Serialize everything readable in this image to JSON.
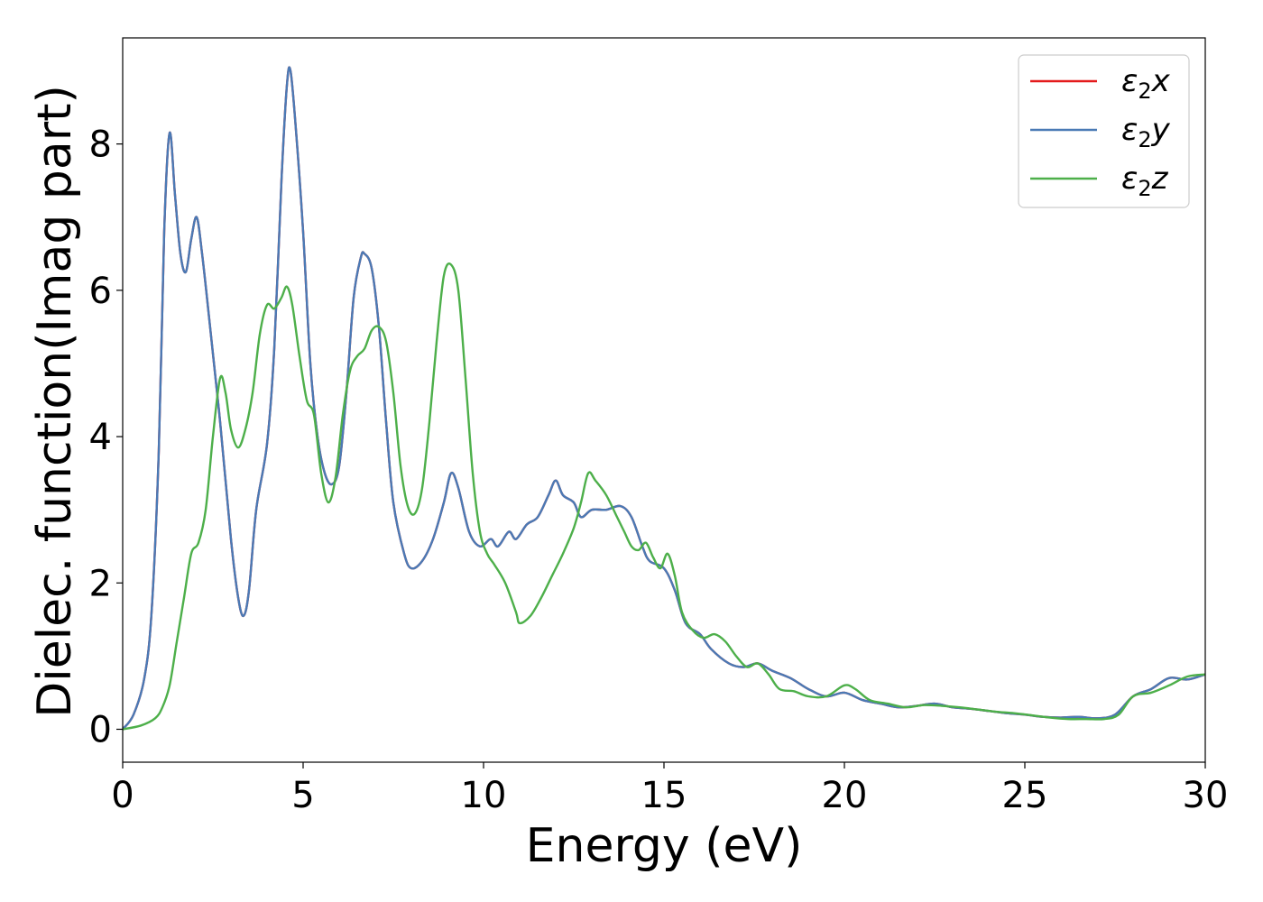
{
  "chart_data": {
    "type": "line",
    "title": "",
    "xlabel": "Energy (eV)",
    "ylabel": "Dielec. function(Imag part)",
    "xlim": [
      0,
      30
    ],
    "ylim": [
      -0.45,
      9.45
    ],
    "xticks": [
      0,
      5,
      10,
      15,
      20,
      25,
      30
    ],
    "yticks": [
      0,
      2,
      4,
      6,
      8
    ],
    "grid": false,
    "legend_position": "top-right",
    "series": [
      {
        "name": "ε2x",
        "name_base": "ε",
        "name_sub": "2",
        "name_var": "x",
        "color": "#e41a1c",
        "points": [
          [
            0,
            0
          ],
          [
            0.3,
            0.2
          ],
          [
            0.6,
            0.7
          ],
          [
            0.8,
            1.6
          ],
          [
            1.0,
            3.8
          ],
          [
            1.15,
            6.8
          ],
          [
            1.3,
            8.15
          ],
          [
            1.45,
            7.3
          ],
          [
            1.6,
            6.5
          ],
          [
            1.75,
            6.25
          ],
          [
            1.9,
            6.7
          ],
          [
            2.05,
            7.0
          ],
          [
            2.2,
            6.5
          ],
          [
            2.4,
            5.6
          ],
          [
            2.7,
            4.2
          ],
          [
            3.0,
            2.6
          ],
          [
            3.2,
            1.8
          ],
          [
            3.35,
            1.55
          ],
          [
            3.5,
            1.9
          ],
          [
            3.7,
            3.0
          ],
          [
            4.0,
            3.9
          ],
          [
            4.2,
            5.2
          ],
          [
            4.4,
            7.5
          ],
          [
            4.55,
            8.8
          ],
          [
            4.65,
            9.0
          ],
          [
            4.8,
            8.2
          ],
          [
            5.0,
            6.8
          ],
          [
            5.2,
            5.0
          ],
          [
            5.4,
            4.0
          ],
          [
            5.6,
            3.5
          ],
          [
            5.8,
            3.35
          ],
          [
            6.0,
            3.6
          ],
          [
            6.2,
            4.6
          ],
          [
            6.4,
            5.9
          ],
          [
            6.6,
            6.45
          ],
          [
            6.7,
            6.5
          ],
          [
            6.9,
            6.3
          ],
          [
            7.1,
            5.5
          ],
          [
            7.3,
            4.2
          ],
          [
            7.5,
            3.1
          ],
          [
            7.8,
            2.4
          ],
          [
            8.0,
            2.2
          ],
          [
            8.3,
            2.3
          ],
          [
            8.6,
            2.6
          ],
          [
            8.9,
            3.1
          ],
          [
            9.1,
            3.5
          ],
          [
            9.3,
            3.3
          ],
          [
            9.6,
            2.7
          ],
          [
            9.9,
            2.5
          ],
          [
            10.2,
            2.6
          ],
          [
            10.4,
            2.5
          ],
          [
            10.7,
            2.7
          ],
          [
            10.9,
            2.6
          ],
          [
            11.2,
            2.8
          ],
          [
            11.5,
            2.9
          ],
          [
            11.8,
            3.2
          ],
          [
            12.0,
            3.4
          ],
          [
            12.2,
            3.2
          ],
          [
            12.5,
            3.1
          ],
          [
            12.7,
            2.9
          ],
          [
            13.0,
            3.0
          ],
          [
            13.4,
            3.0
          ],
          [
            13.8,
            3.05
          ],
          [
            14.1,
            2.9
          ],
          [
            14.4,
            2.5
          ],
          [
            14.6,
            2.3
          ],
          [
            15.0,
            2.2
          ],
          [
            15.3,
            1.9
          ],
          [
            15.6,
            1.45
          ],
          [
            16.0,
            1.3
          ],
          [
            16.3,
            1.1
          ],
          [
            16.8,
            0.9
          ],
          [
            17.2,
            0.85
          ],
          [
            17.6,
            0.9
          ],
          [
            18.0,
            0.8
          ],
          [
            18.5,
            0.7
          ],
          [
            19.0,
            0.55
          ],
          [
            19.5,
            0.45
          ],
          [
            20.0,
            0.5
          ],
          [
            20.5,
            0.4
          ],
          [
            21.0,
            0.35
          ],
          [
            21.5,
            0.3
          ],
          [
            22.0,
            0.32
          ],
          [
            22.5,
            0.35
          ],
          [
            23.0,
            0.3
          ],
          [
            23.5,
            0.28
          ],
          [
            24.0,
            0.25
          ],
          [
            24.5,
            0.22
          ],
          [
            25.0,
            0.2
          ],
          [
            25.5,
            0.17
          ],
          [
            26.0,
            0.16
          ],
          [
            26.5,
            0.17
          ],
          [
            27.0,
            0.15
          ],
          [
            27.5,
            0.2
          ],
          [
            28.0,
            0.45
          ],
          [
            28.5,
            0.55
          ],
          [
            29.0,
            0.7
          ],
          [
            29.5,
            0.68
          ],
          [
            30.0,
            0.75
          ]
        ]
      },
      {
        "name": "ε2y",
        "name_base": "ε",
        "name_sub": "2",
        "name_var": "y",
        "color": "#4a7ab5",
        "points": [
          [
            0,
            0
          ],
          [
            0.3,
            0.2
          ],
          [
            0.6,
            0.7
          ],
          [
            0.8,
            1.6
          ],
          [
            1.0,
            3.8
          ],
          [
            1.15,
            6.8
          ],
          [
            1.3,
            8.15
          ],
          [
            1.45,
            7.3
          ],
          [
            1.6,
            6.5
          ],
          [
            1.75,
            6.25
          ],
          [
            1.9,
            6.7
          ],
          [
            2.05,
            7.0
          ],
          [
            2.2,
            6.5
          ],
          [
            2.4,
            5.6
          ],
          [
            2.7,
            4.2
          ],
          [
            3.0,
            2.6
          ],
          [
            3.2,
            1.8
          ],
          [
            3.35,
            1.55
          ],
          [
            3.5,
            1.9
          ],
          [
            3.7,
            3.0
          ],
          [
            4.0,
            3.9
          ],
          [
            4.2,
            5.2
          ],
          [
            4.4,
            7.5
          ],
          [
            4.55,
            8.8
          ],
          [
            4.65,
            9.0
          ],
          [
            4.8,
            8.2
          ],
          [
            5.0,
            6.8
          ],
          [
            5.2,
            5.0
          ],
          [
            5.4,
            4.0
          ],
          [
            5.6,
            3.5
          ],
          [
            5.8,
            3.35
          ],
          [
            6.0,
            3.6
          ],
          [
            6.2,
            4.6
          ],
          [
            6.4,
            5.9
          ],
          [
            6.6,
            6.45
          ],
          [
            6.7,
            6.5
          ],
          [
            6.9,
            6.3
          ],
          [
            7.1,
            5.5
          ],
          [
            7.3,
            4.2
          ],
          [
            7.5,
            3.1
          ],
          [
            7.8,
            2.4
          ],
          [
            8.0,
            2.2
          ],
          [
            8.3,
            2.3
          ],
          [
            8.6,
            2.6
          ],
          [
            8.9,
            3.1
          ],
          [
            9.1,
            3.5
          ],
          [
            9.3,
            3.3
          ],
          [
            9.6,
            2.7
          ],
          [
            9.9,
            2.5
          ],
          [
            10.2,
            2.6
          ],
          [
            10.4,
            2.5
          ],
          [
            10.7,
            2.7
          ],
          [
            10.9,
            2.6
          ],
          [
            11.2,
            2.8
          ],
          [
            11.5,
            2.9
          ],
          [
            11.8,
            3.2
          ],
          [
            12.0,
            3.4
          ],
          [
            12.2,
            3.2
          ],
          [
            12.5,
            3.1
          ],
          [
            12.7,
            2.9
          ],
          [
            13.0,
            3.0
          ],
          [
            13.4,
            3.0
          ],
          [
            13.8,
            3.05
          ],
          [
            14.1,
            2.9
          ],
          [
            14.4,
            2.5
          ],
          [
            14.6,
            2.3
          ],
          [
            15.0,
            2.2
          ],
          [
            15.3,
            1.9
          ],
          [
            15.6,
            1.45
          ],
          [
            16.0,
            1.3
          ],
          [
            16.3,
            1.1
          ],
          [
            16.8,
            0.9
          ],
          [
            17.2,
            0.85
          ],
          [
            17.6,
            0.9
          ],
          [
            18.0,
            0.8
          ],
          [
            18.5,
            0.7
          ],
          [
            19.0,
            0.55
          ],
          [
            19.5,
            0.45
          ],
          [
            20.0,
            0.5
          ],
          [
            20.5,
            0.4
          ],
          [
            21.0,
            0.35
          ],
          [
            21.5,
            0.3
          ],
          [
            22.0,
            0.32
          ],
          [
            22.5,
            0.35
          ],
          [
            23.0,
            0.3
          ],
          [
            23.5,
            0.28
          ],
          [
            24.0,
            0.25
          ],
          [
            24.5,
            0.22
          ],
          [
            25.0,
            0.2
          ],
          [
            25.5,
            0.17
          ],
          [
            26.0,
            0.16
          ],
          [
            26.5,
            0.17
          ],
          [
            27.0,
            0.15
          ],
          [
            27.5,
            0.2
          ],
          [
            28.0,
            0.45
          ],
          [
            28.5,
            0.55
          ],
          [
            29.0,
            0.7
          ],
          [
            29.5,
            0.68
          ],
          [
            30.0,
            0.75
          ]
        ]
      },
      {
        "name": "ε2z",
        "name_base": "ε",
        "name_sub": "2",
        "name_var": "z",
        "color": "#4daf4a",
        "points": [
          [
            0,
            0
          ],
          [
            0.5,
            0.05
          ],
          [
            0.9,
            0.15
          ],
          [
            1.1,
            0.3
          ],
          [
            1.3,
            0.6
          ],
          [
            1.5,
            1.2
          ],
          [
            1.7,
            1.8
          ],
          [
            1.9,
            2.4
          ],
          [
            2.1,
            2.55
          ],
          [
            2.3,
            3.0
          ],
          [
            2.5,
            4.0
          ],
          [
            2.7,
            4.8
          ],
          [
            2.85,
            4.6
          ],
          [
            3.0,
            4.1
          ],
          [
            3.2,
            3.85
          ],
          [
            3.4,
            4.1
          ],
          [
            3.6,
            4.6
          ],
          [
            3.8,
            5.4
          ],
          [
            4.0,
            5.8
          ],
          [
            4.2,
            5.75
          ],
          [
            4.4,
            5.9
          ],
          [
            4.55,
            6.05
          ],
          [
            4.7,
            5.8
          ],
          [
            4.9,
            5.1
          ],
          [
            5.1,
            4.5
          ],
          [
            5.3,
            4.3
          ],
          [
            5.5,
            3.5
          ],
          [
            5.7,
            3.1
          ],
          [
            5.9,
            3.45
          ],
          [
            6.1,
            4.3
          ],
          [
            6.3,
            4.9
          ],
          [
            6.5,
            5.1
          ],
          [
            6.7,
            5.2
          ],
          [
            6.9,
            5.45
          ],
          [
            7.1,
            5.5
          ],
          [
            7.3,
            5.3
          ],
          [
            7.5,
            4.6
          ],
          [
            7.7,
            3.6
          ],
          [
            7.9,
            3.05
          ],
          [
            8.1,
            2.95
          ],
          [
            8.3,
            3.3
          ],
          [
            8.5,
            4.2
          ],
          [
            8.7,
            5.3
          ],
          [
            8.9,
            6.2
          ],
          [
            9.1,
            6.35
          ],
          [
            9.3,
            6.0
          ],
          [
            9.5,
            4.8
          ],
          [
            9.7,
            3.5
          ],
          [
            9.9,
            2.7
          ],
          [
            10.1,
            2.4
          ],
          [
            10.3,
            2.25
          ],
          [
            10.6,
            2.0
          ],
          [
            10.9,
            1.6
          ],
          [
            11.0,
            1.45
          ],
          [
            11.3,
            1.55
          ],
          [
            11.6,
            1.8
          ],
          [
            11.9,
            2.1
          ],
          [
            12.2,
            2.4
          ],
          [
            12.5,
            2.75
          ],
          [
            12.7,
            3.1
          ],
          [
            12.9,
            3.5
          ],
          [
            13.1,
            3.4
          ],
          [
            13.4,
            3.2
          ],
          [
            13.7,
            2.9
          ],
          [
            13.9,
            2.7
          ],
          [
            14.1,
            2.5
          ],
          [
            14.3,
            2.45
          ],
          [
            14.5,
            2.55
          ],
          [
            14.7,
            2.35
          ],
          [
            14.9,
            2.2
          ],
          [
            15.1,
            2.4
          ],
          [
            15.3,
            2.1
          ],
          [
            15.5,
            1.6
          ],
          [
            15.8,
            1.35
          ],
          [
            16.1,
            1.25
          ],
          [
            16.4,
            1.3
          ],
          [
            16.7,
            1.2
          ],
          [
            17.0,
            1.0
          ],
          [
            17.3,
            0.85
          ],
          [
            17.6,
            0.9
          ],
          [
            17.9,
            0.75
          ],
          [
            18.2,
            0.55
          ],
          [
            18.6,
            0.52
          ],
          [
            19.0,
            0.45
          ],
          [
            19.5,
            0.45
          ],
          [
            20.0,
            0.6
          ],
          [
            20.3,
            0.55
          ],
          [
            20.7,
            0.4
          ],
          [
            21.2,
            0.35
          ],
          [
            21.7,
            0.3
          ],
          [
            22.2,
            0.33
          ],
          [
            22.7,
            0.32
          ],
          [
            23.2,
            0.3
          ],
          [
            23.7,
            0.27
          ],
          [
            24.2,
            0.24
          ],
          [
            24.7,
            0.22
          ],
          [
            25.2,
            0.19
          ],
          [
            25.7,
            0.16
          ],
          [
            26.2,
            0.14
          ],
          [
            26.7,
            0.14
          ],
          [
            27.2,
            0.14
          ],
          [
            27.6,
            0.2
          ],
          [
            28.0,
            0.45
          ],
          [
            28.5,
            0.5
          ],
          [
            29.0,
            0.6
          ],
          [
            29.5,
            0.72
          ],
          [
            30.0,
            0.75
          ]
        ]
      }
    ]
  }
}
